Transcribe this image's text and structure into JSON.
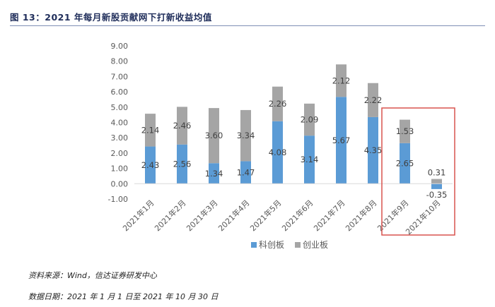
{
  "figure": {
    "title": "图 13：2021 年每月新股贡献网下打新收益均值",
    "source": "资料来源：Wind，信达证券研发中心",
    "date_range": "数据日期：2021 年 1 月 1 日至 2021 年 10 月 30 日"
  },
  "chart_data": {
    "type": "bar",
    "stacked": true,
    "categories": [
      "2021年1月",
      "2021年2月",
      "2021年3月",
      "2021年4月",
      "2021年5月",
      "2021年6月",
      "2021年7月",
      "2021年8月",
      "2021年9月",
      "2021年10月"
    ],
    "series": [
      {
        "name": "科创板",
        "color": "#5b9bd5",
        "values": [
          2.43,
          2.56,
          1.34,
          1.47,
          4.08,
          3.14,
          5.67,
          4.35,
          2.65,
          -0.35
        ]
      },
      {
        "name": "创业板",
        "color": "#a5a5a5",
        "values": [
          2.14,
          2.46,
          3.6,
          3.34,
          2.26,
          2.09,
          2.12,
          2.22,
          1.53,
          0.31
        ]
      }
    ],
    "data_labels": {
      "科创板": [
        "2.43",
        "2.56",
        "1.34",
        "1.47",
        "4.08",
        "3.14",
        "5.67",
        "4.35",
        "2.65",
        "-0.35"
      ],
      "创业板": [
        "2.14",
        "2.46",
        "3.60",
        "3.34",
        "2.26",
        "2.09",
        "2.12",
        "2.22",
        "1.53",
        "0.31"
      ]
    },
    "ylim": [
      -1,
      9
    ],
    "y_ticks": [
      "-1.00",
      "0.00",
      "1.00",
      "2.00",
      "3.00",
      "4.00",
      "5.00",
      "6.00",
      "7.00",
      "8.00",
      "9.00"
    ],
    "legend_position": "bottom",
    "grid": false,
    "highlight": {
      "categories": [
        "2021年9月",
        "2021年10月"
      ],
      "color": "#d9534f"
    }
  }
}
